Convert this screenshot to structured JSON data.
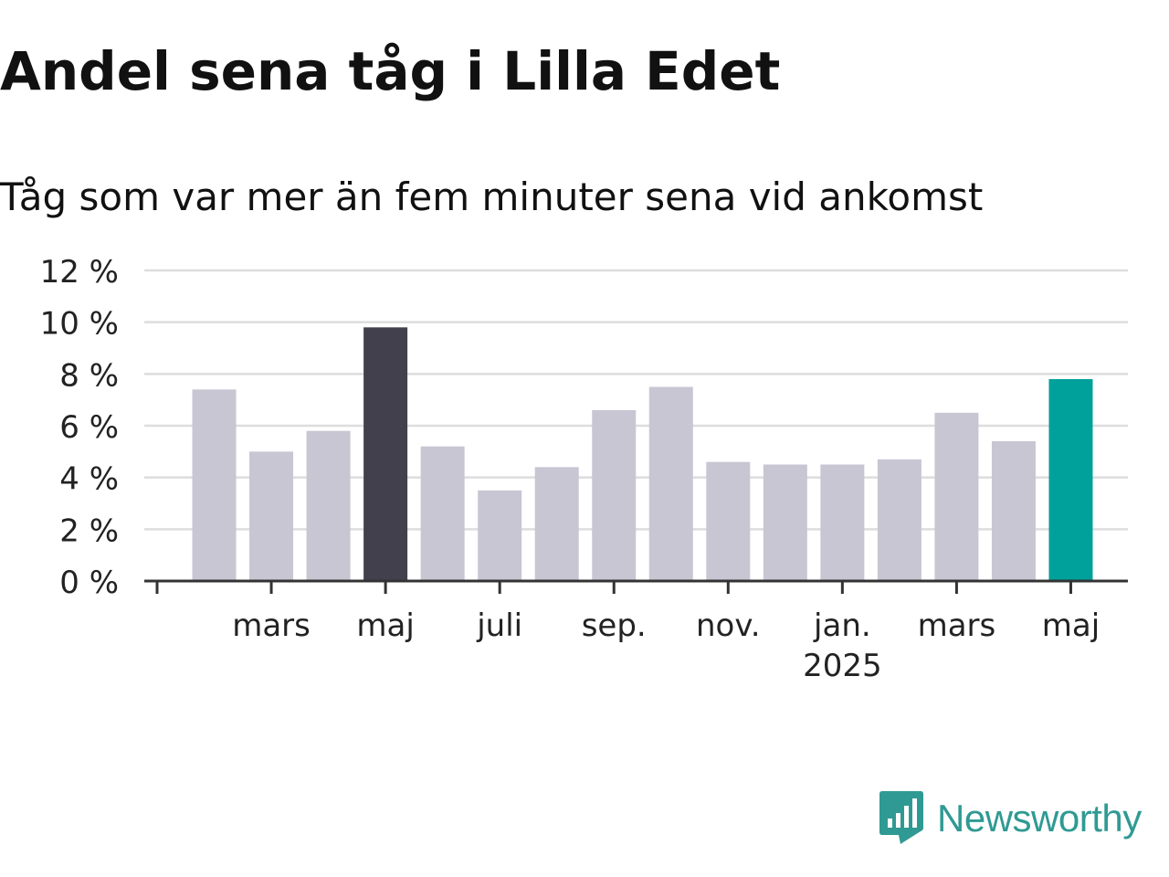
{
  "header": {
    "title": "Andel sena tåg i Lilla Edet",
    "subtitle": "Tåg som var mer än fem minuter sena vid ankomst"
  },
  "colors": {
    "bar_default": "#c8c6d3",
    "bar_highlight_max": "#43404d",
    "bar_highlight_latest": "#00a19a",
    "grid": "#dddddd",
    "axis": "#333333",
    "tick_label": "#222222",
    "brand": "#2f9a93"
  },
  "chart_data": {
    "type": "bar",
    "categories": [
      "2024-02",
      "2024-03",
      "2024-04",
      "2024-05",
      "2024-06",
      "2024-07",
      "2024-08",
      "2024-09",
      "2024-10",
      "2024-11",
      "2024-12",
      "2025-01",
      "2025-02",
      "2025-03",
      "2025-04",
      "2025-05"
    ],
    "values": [
      7.4,
      5.0,
      5.8,
      9.8,
      5.2,
      3.5,
      4.4,
      6.6,
      7.5,
      4.6,
      4.5,
      4.5,
      4.7,
      6.5,
      5.4,
      7.8
    ],
    "highlight": {
      "max_index": 3,
      "latest_index": 15
    },
    "ylim": [
      0,
      12
    ],
    "y_ticks": [
      {
        "value": 0,
        "label": "0 %"
      },
      {
        "value": 2,
        "label": "2 %"
      },
      {
        "value": 4,
        "label": "4 %"
      },
      {
        "value": 6,
        "label": "6 %"
      },
      {
        "value": 8,
        "label": "8 %"
      },
      {
        "value": 10,
        "label": "10 %"
      },
      {
        "value": 12,
        "label": "12 %"
      }
    ],
    "x_ticks": [
      {
        "index": 0,
        "label": ""
      },
      {
        "index": 2,
        "label": "mars"
      },
      {
        "index": 4,
        "label": "maj"
      },
      {
        "index": 6,
        "label": "juli"
      },
      {
        "index": 8,
        "label": "sep."
      },
      {
        "index": 10,
        "label": "nov."
      },
      {
        "index": 12,
        "label": "jan.",
        "sublabel": "2025"
      },
      {
        "index": 14,
        "label": "mars"
      },
      {
        "index": 16,
        "label": "maj"
      }
    ],
    "xlabel": "",
    "ylabel": "",
    "grid": true
  },
  "logo": {
    "icon": "newsworthy-logo-icon",
    "text": "Newsworthy"
  }
}
